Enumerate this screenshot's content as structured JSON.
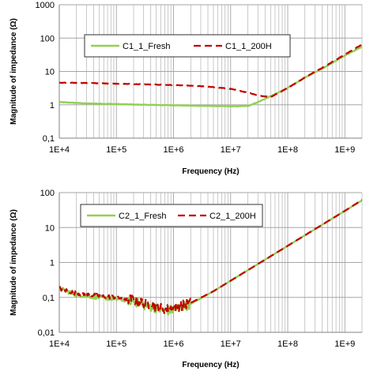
{
  "colors": {
    "fresh": "#92d050",
    "aged": "#c00000",
    "grid": "#a6a6a6",
    "axis": "#808080"
  },
  "chart_data": [
    {
      "type": "line",
      "x_scale": "log",
      "y_scale": "log",
      "xlim": [
        10000,
        2000000000
      ],
      "ylim": [
        0.1,
        1000
      ],
      "x_ticks": [
        10000,
        100000,
        1000000,
        10000000,
        100000000,
        1000000000
      ],
      "x_tick_labels": [
        "1E+4",
        "1E+5",
        "1E+6",
        "1E+7",
        "1E+8",
        "1E+9"
      ],
      "y_ticks": [
        0.1,
        1,
        10,
        100,
        1000
      ],
      "y_tick_labels": [
        "0,1",
        "1",
        "10",
        "100",
        "1000"
      ],
      "xlabel": "Frequency (Hz)",
      "ylabel": "Magnitude of impedance (Ω)",
      "grid": true,
      "legend_position": "top-center",
      "series": [
        {
          "name": "C1_1_Fresh",
          "style": "solid",
          "color": "#92d050",
          "x": [
            10000,
            30000,
            100000,
            300000,
            1000000,
            3000000,
            10000000,
            20000000,
            30000000,
            50000000,
            100000000,
            200000000,
            500000000,
            1000000000,
            2000000000
          ],
          "y": [
            1.2,
            1.1,
            1.05,
            1.0,
            0.97,
            0.93,
            0.9,
            0.92,
            1.2,
            1.8,
            3.2,
            6.5,
            15,
            30,
            55
          ]
        },
        {
          "name": "C1_1_200H",
          "style": "dashed",
          "color": "#c00000",
          "x": [
            10000,
            30000,
            100000,
            300000,
            1000000,
            3000000,
            5000000,
            10000000,
            20000000,
            30000000,
            50000000,
            100000000,
            200000000,
            500000000,
            1000000000,
            2000000000
          ],
          "y": [
            4.6,
            4.5,
            4.3,
            4.1,
            3.9,
            3.6,
            3.4,
            3.0,
            2.3,
            1.9,
            1.7,
            3.2,
            6.6,
            16,
            32,
            65
          ]
        }
      ]
    },
    {
      "type": "line",
      "x_scale": "log",
      "y_scale": "log",
      "xlim": [
        10000,
        2000000000
      ],
      "ylim": [
        0.01,
        100
      ],
      "x_ticks": [
        10000,
        100000,
        1000000,
        10000000,
        100000000,
        1000000000
      ],
      "x_tick_labels": [
        "1E+4",
        "1E+5",
        "1E+6",
        "1E+7",
        "1E+8",
        "1E+9"
      ],
      "y_ticks": [
        0.01,
        0.1,
        1,
        10,
        100
      ],
      "y_tick_labels": [
        "0,01",
        "0,1",
        "1",
        "10",
        "100"
      ],
      "xlabel": "Frequency (Hz)",
      "ylabel": "Magnitude of impedance (Ω)",
      "grid": true,
      "legend_position": "top-center",
      "series": [
        {
          "name": "C2_1_Fresh",
          "style": "solid",
          "color": "#92d050",
          "x": [
            10000,
            20000,
            50000,
            100000,
            200000,
            300000,
            500000,
            700000,
            1000000,
            2000000,
            5000000,
            10000000,
            100000000,
            1000000000,
            2000000000
          ],
          "y": [
            0.18,
            0.12,
            0.1,
            0.09,
            0.08,
            0.06,
            0.05,
            0.04,
            0.045,
            0.065,
            0.15,
            0.3,
            3.0,
            30,
            60
          ]
        },
        {
          "name": "C2_1_200H",
          "style": "dashed",
          "color": "#c00000",
          "x": [
            10000,
            20000,
            50000,
            100000,
            200000,
            300000,
            500000,
            700000,
            1000000,
            2000000,
            5000000,
            10000000,
            100000000,
            1000000000,
            2000000000
          ],
          "y": [
            0.18,
            0.13,
            0.11,
            0.1,
            0.085,
            0.07,
            0.055,
            0.045,
            0.05,
            0.07,
            0.15,
            0.3,
            3.0,
            30,
            62
          ]
        }
      ]
    }
  ]
}
